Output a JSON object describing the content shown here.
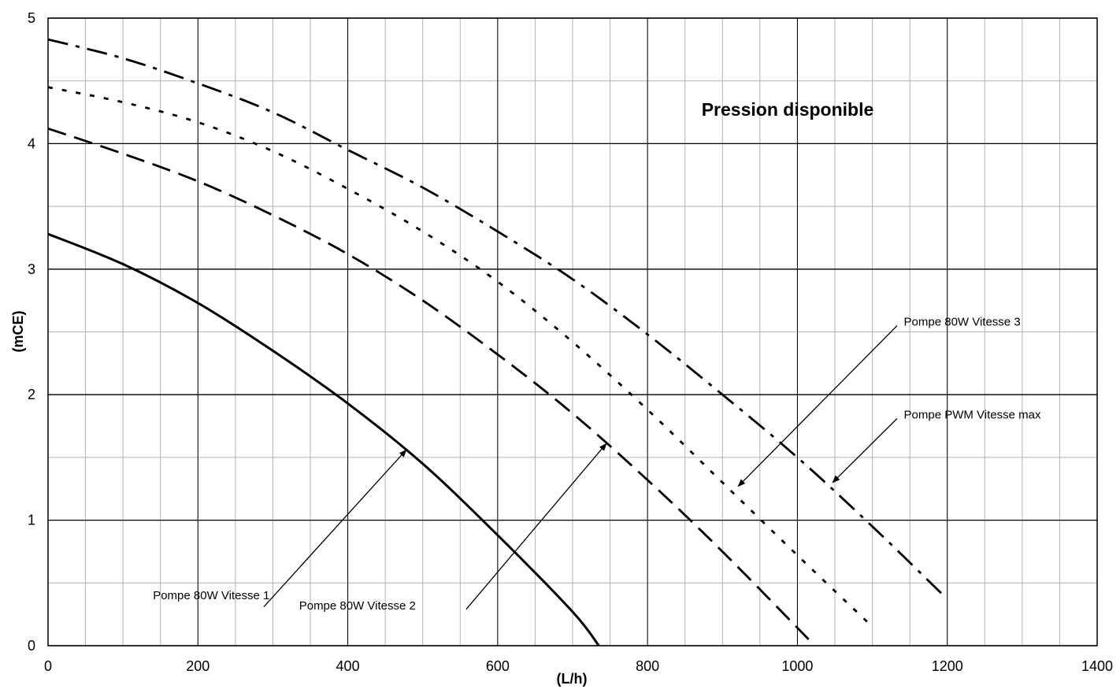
{
  "chart_data": {
    "type": "line",
    "title": "Pression disponible",
    "xlabel": "(L/h)",
    "ylabel": "(mCE)",
    "xlim": [
      0,
      1400
    ],
    "ylim": [
      0,
      5
    ],
    "xticks": [
      "0",
      "200",
      "400",
      "600",
      "800",
      "1000",
      "1200",
      "1400"
    ],
    "yticks": [
      "0",
      "1",
      "2",
      "3",
      "4",
      "5"
    ],
    "grid": "on",
    "series": [
      {
        "name": "Pompe 80W Vitesse 1",
        "style": "solid",
        "x": [
          0,
          100,
          200,
          300,
          400,
          500,
          600,
          700,
          735
        ],
        "y": [
          3.28,
          3.04,
          2.73,
          2.35,
          1.93,
          1.45,
          0.88,
          0.27,
          0.0
        ]
      },
      {
        "name": "Pompe 80W Vitesse 2",
        "style": "dashed",
        "x": [
          0,
          100,
          200,
          300,
          400,
          500,
          600,
          700,
          800,
          900,
          1015
        ],
        "y": [
          4.12,
          3.92,
          3.7,
          3.43,
          3.12,
          2.75,
          2.32,
          1.85,
          1.32,
          0.75,
          0.05
        ]
      },
      {
        "name": "Pompe 80W Vitesse 3",
        "style": "dotted",
        "x": [
          0,
          100,
          200,
          300,
          400,
          500,
          600,
          700,
          800,
          900,
          1000,
          1095
        ],
        "y": [
          4.45,
          4.33,
          4.17,
          3.94,
          3.64,
          3.3,
          2.9,
          2.42,
          1.88,
          1.3,
          0.72,
          0.18
        ]
      },
      {
        "name": "Pompe PWM  Vitesse max",
        "style": "dashdot",
        "x": [
          0,
          100,
          200,
          300,
          400,
          500,
          600,
          700,
          800,
          900,
          1000,
          1100,
          1195
        ],
        "y": [
          4.83,
          4.68,
          4.48,
          4.25,
          3.95,
          3.65,
          3.3,
          2.92,
          2.48,
          2.0,
          1.5,
          0.95,
          0.4
        ]
      }
    ],
    "annotations": [
      {
        "text": "Pompe 80W Vitesse 1",
        "text_at": [
          140,
          0.37
        ],
        "arrow_from": [
          288,
          0.31
        ],
        "arrow_to": [
          478,
          1.56
        ]
      },
      {
        "text": "Pompe 80W Vitesse 2",
        "text_at": [
          335,
          0.29
        ],
        "arrow_from": [
          558,
          0.29
        ],
        "arrow_to": [
          745,
          1.61
        ]
      },
      {
        "text": "Pompe 80W Vitesse 3",
        "text_at": [
          1142,
          2.55
        ],
        "arrow_from": [
          1133,
          2.55
        ],
        "arrow_to": [
          921,
          1.27
        ]
      },
      {
        "text": "Pompe PWM  Vitesse max",
        "text_at": [
          1142,
          1.81
        ],
        "arrow_from": [
          1133,
          1.81
        ],
        "arrow_to": [
          1047,
          1.3
        ]
      }
    ]
  }
}
